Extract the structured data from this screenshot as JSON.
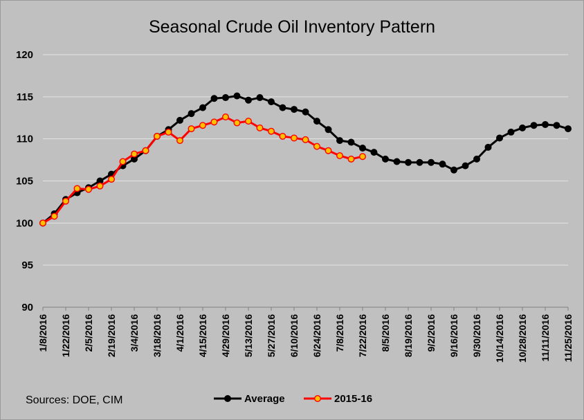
{
  "chart_data": {
    "type": "line",
    "title": "Seasonal Crude Oil Inventory Pattern",
    "source_note": "Sources:  DOE, CIM",
    "ylim": [
      90,
      120
    ],
    "yticks": [
      90,
      95,
      100,
      105,
      110,
      115,
      120
    ],
    "grid": true,
    "legend_position": "bottom",
    "x_tick_labels": [
      "1/8/2016",
      "1/22/2016",
      "2/5/2016",
      "2/19/2016",
      "3/4/2016",
      "3/18/2016",
      "4/1/2016",
      "4/15/2016",
      "4/29/2016",
      "5/13/2016",
      "5/27/2016",
      "6/10/2016",
      "6/24/2016",
      "7/8/2016",
      "7/22/2016",
      "8/5/2016",
      "8/19/2016",
      "9/2/2016",
      "9/16/2016",
      "9/30/2016",
      "10/14/2016",
      "10/28/2016",
      "11/11/2016",
      "11/25/2016"
    ],
    "series": [
      {
        "name": "Average",
        "color": "#000000",
        "marker_color": "#000000",
        "values": [
          100.0,
          101.1,
          102.8,
          103.6,
          104.2,
          105.0,
          105.8,
          106.8,
          107.6,
          108.6,
          110.3,
          111.1,
          112.2,
          113.0,
          113.7,
          114.8,
          114.9,
          115.1,
          114.6,
          114.9,
          114.4,
          113.7,
          113.5,
          113.2,
          112.1,
          111.1,
          109.8,
          109.6,
          108.9,
          108.4,
          107.6,
          107.3,
          107.2,
          107.2,
          107.2,
          107.0,
          106.3,
          106.8,
          107.6,
          109.0,
          110.1,
          110.8,
          111.3,
          111.6,
          111.7,
          111.6,
          111.2
        ]
      },
      {
        "name": "2015-16",
        "color": "#ff0000",
        "marker_color": "#ffc000",
        "values": [
          100.0,
          100.8,
          102.6,
          104.1,
          104.0,
          104.4,
          105.2,
          107.3,
          108.2,
          108.6,
          110.3,
          110.8,
          109.8,
          111.2,
          111.6,
          112.0,
          112.6,
          111.9,
          112.1,
          111.3,
          110.9,
          110.3,
          110.1,
          109.9,
          109.1,
          108.6,
          108.0,
          107.6,
          107.9
        ]
      }
    ]
  }
}
